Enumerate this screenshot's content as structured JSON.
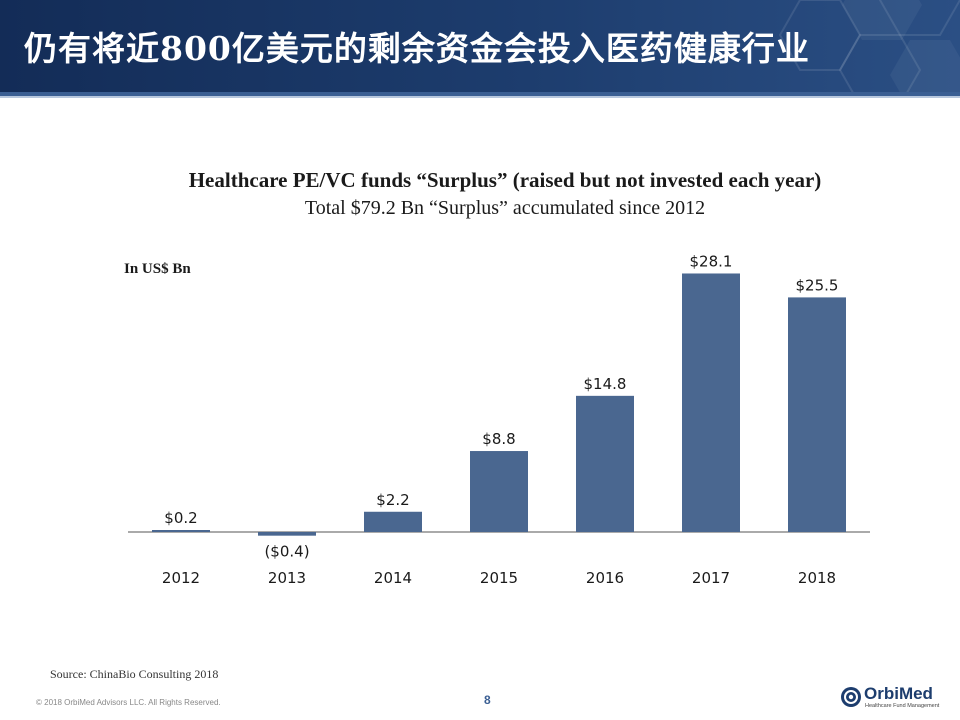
{
  "slide": {
    "header_title": "仍有将近800亿美元的剩余资金会投入医药健康行业",
    "source": "Source: ChinaBio Consulting 2018",
    "copyright": "© 2018 OrbiMed Advisors LLC. All Rights Reserved.",
    "page_number": "8",
    "logo_name": "OrbiMed",
    "logo_tagline": "Healthcare Fund Management",
    "header_color": "#1d3d6e"
  },
  "chart_data": {
    "type": "bar",
    "title": "Healthcare PE/VC funds “Surplus” (raised but not invested each year)",
    "subtitle": "Total $79.2 Bn “Surplus” accumulated since 2012",
    "unit_label": "In US$ Bn",
    "categories": [
      "2012",
      "2013",
      "2014",
      "2015",
      "2016",
      "2017",
      "2018"
    ],
    "values": [
      0.2,
      -0.4,
      2.2,
      8.8,
      14.8,
      28.1,
      25.5
    ],
    "data_labels": [
      "$0.2",
      "($0.4)",
      "$2.2",
      "$8.8",
      "$14.8",
      "$28.1",
      "$25.5"
    ],
    "ylim": [
      -1,
      29
    ],
    "bar_color": "#4a6790",
    "grid": false,
    "legend": "none"
  }
}
